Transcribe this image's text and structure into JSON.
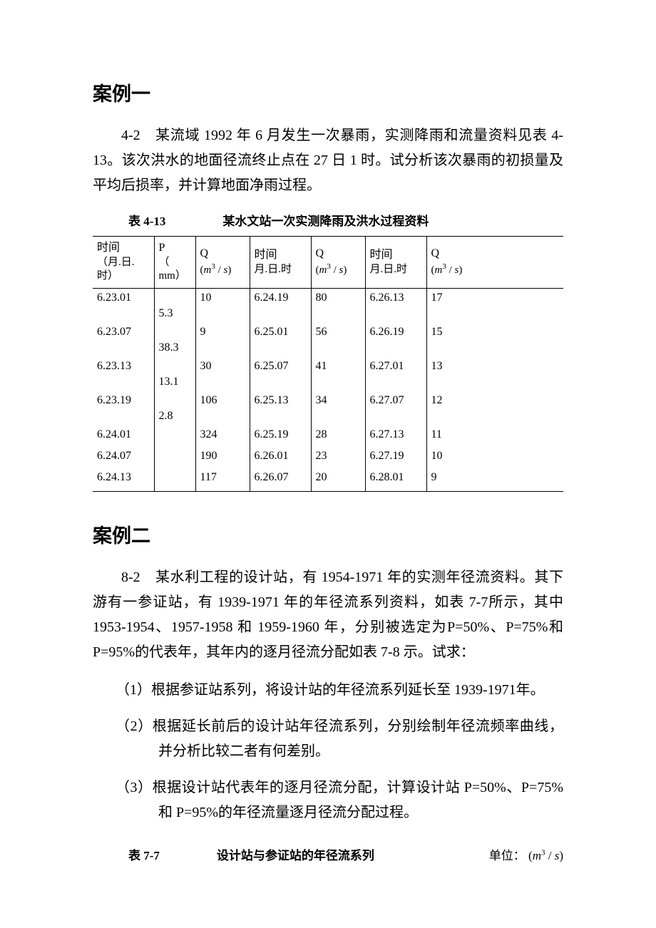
{
  "case1": {
    "heading": "案例一",
    "paragraph": "4-2　某流域 1992 年 6 月发生一次暴雨，实测降雨和流量资料见表 4-13。该次洪水的地面径流终止点在 27 日 1 时。试分析该次暴雨的初损量及平均后损率，并计算地面净雨过程。",
    "table_label": "表 4-13",
    "table_caption": "某水文站一次实测降雨及洪水过程资料"
  },
  "table413": {
    "headers": {
      "time1_l1": "时间",
      "time1_l2": "（月.日.时）",
      "p_l1": "P",
      "p_l2": "（ mm）",
      "q_l1": "Q",
      "time2_l1": "时间",
      "time2_l2": "月.日.时",
      "q2_l1": "Q",
      "time3_l1": "时间",
      "time3_l2": "月.日.时",
      "q3_l1": "Q"
    },
    "q_unit_html": "(m³/s)",
    "rows": [
      {
        "t1": "6.23.01",
        "p": "",
        "q": "10",
        "t2": "6.24.19",
        "q2": "80",
        "t3": "6.26.13",
        "q3": "17"
      },
      {
        "t1": "",
        "p": "5.3",
        "q": "",
        "t2": "",
        "q2": "",
        "t3": "",
        "q3": ""
      },
      {
        "t1": "6.23.07",
        "p": "",
        "q": "9",
        "t2": "6.25.01",
        "q2": "56",
        "t3": "6.26.19",
        "q3": "15"
      },
      {
        "t1": "",
        "p": "38.3",
        "q": "",
        "t2": "",
        "q2": "",
        "t3": "",
        "q3": ""
      },
      {
        "t1": "6.23.13",
        "p": "",
        "q": "30",
        "t2": "6.25.07",
        "q2": "41",
        "t3": "6.27.01",
        "q3": "13"
      },
      {
        "t1": "",
        "p": "13.1",
        "q": "",
        "t2": "",
        "q2": "",
        "t3": "",
        "q3": ""
      },
      {
        "t1": "6.23.19",
        "p": "",
        "q": "106",
        "t2": "6.25.13",
        "q2": "34",
        "t3": "6.27.07",
        "q3": "12"
      },
      {
        "t1": "",
        "p": "2.8",
        "q": "",
        "t2": "",
        "q2": "",
        "t3": "",
        "q3": ""
      },
      {
        "t1": "6.24.01",
        "p": "",
        "q": "324",
        "t2": "6.25.19",
        "q2": "28",
        "t3": "6.27.13",
        "q3": "11"
      },
      {
        "t1": "",
        "p": "",
        "q": "",
        "t2": "",
        "q2": "",
        "t3": "",
        "q3": ""
      },
      {
        "t1": "6.24.07",
        "p": "",
        "q": "190",
        "t2": "6.26.01",
        "q2": "23",
        "t3": "6.27.19",
        "q3": "10"
      },
      {
        "t1": "",
        "p": "",
        "q": "",
        "t2": "",
        "q2": "",
        "t3": "",
        "q3": ""
      },
      {
        "t1": "6.24.13",
        "p": "",
        "q": "117",
        "t2": "6.26.07",
        "q2": "20",
        "t3": "6.28.01",
        "q3": "9"
      }
    ]
  },
  "case2": {
    "heading": "案例二",
    "paragraph": "8-2　某水利工程的设计站，有 1954-1971 年的实测年径流资料。其下游有一参证站，有 1939-1971 年的年径流系列资料，如表 7-7所示，其中 1953-1954、1957-1958 和 1959-1960 年，分别被选定为P=50%、P=75%和 P=95%的代表年，其年内的逐月径流分配如表 7-8 示。试求：",
    "items": [
      "（1）根据参证站系列，将设计站的年径流系列延长至 1939-1971年。",
      "（2）根据延长前后的设计站年径流系列，分别绘制年径流频率曲线，并分析比较二者有何差别。",
      "（3）根据设计站代表年的逐月径流分配，计算设计站 P=50%、P=75%和 P=95%的年径流量逐月径流分配过程。"
    ]
  },
  "table77": {
    "label": "表 7-7",
    "caption": "设计站与参证站的年径流系列",
    "unit_prefix": "单位：",
    "unit_value": "(m³/s)"
  }
}
